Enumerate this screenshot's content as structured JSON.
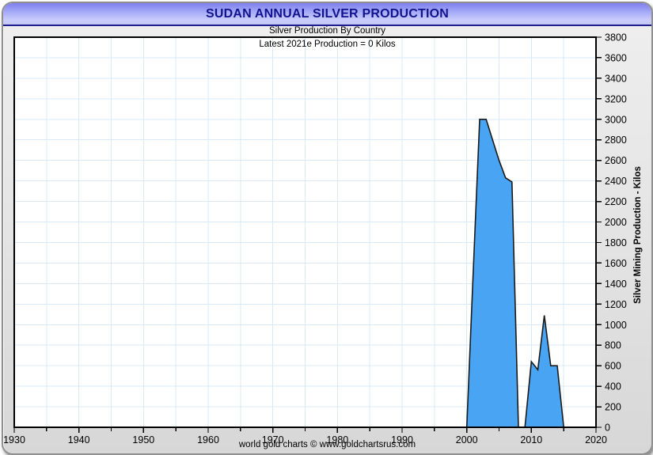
{
  "window": {
    "title": "SUDAN ANNUAL SILVER PRODUCTION",
    "subtitle": "Silver Production By Country",
    "annotation": "Latest 2021e Production = 0 Kilos",
    "footer": "world gold charts © www.goldchartsrus.com"
  },
  "colors": {
    "titlebar_top": "#7f7fee",
    "titlebar_bottom": "#c9cdfc",
    "title_text": "#12128e",
    "navy_rule": "#1e1e8f",
    "window_bg": "#e3e3e3",
    "plot_bg": "#ffffff",
    "plot_border": "#000000",
    "grid": "#d9e9f8",
    "area_fill": "#49a5f3",
    "area_stroke": "#1a1a1a",
    "tick_text": "#000000"
  },
  "chart_data": {
    "type": "area",
    "title": "Silver Production By Country",
    "annotation": "Latest 2021e Production = 0 Kilos",
    "xlabel": "",
    "ylabel": "Silver Mining Production - Kilos",
    "x_range": [
      1930,
      2020
    ],
    "y_range": [
      0,
      3800
    ],
    "y_step": 200,
    "x_grid_step_years": 5,
    "grid": "on",
    "legend": "none",
    "xticks": [
      1930,
      1940,
      1950,
      1960,
      1970,
      1980,
      1990,
      2000,
      2010,
      2020
    ],
    "yticks": [
      0,
      200,
      400,
      600,
      800,
      1000,
      1200,
      1400,
      1600,
      1800,
      2000,
      2200,
      2400,
      2600,
      2800,
      3000,
      3200,
      3400,
      3600,
      3800
    ],
    "zero_years_note": "Production is 0 kilos for 1930-1999 and for 2016-2021e (latest 2021e = 0)",
    "series": [
      {
        "name": "Sudan annual silver production (kilos)",
        "points": [
          [
            2000,
            0
          ],
          [
            2001,
            1500
          ],
          [
            2002,
            3000
          ],
          [
            2003,
            3000
          ],
          [
            2004,
            2800
          ],
          [
            2005,
            2600
          ],
          [
            2006,
            2430
          ],
          [
            2007,
            2390
          ],
          [
            2008,
            0
          ],
          [
            2009,
            0
          ],
          [
            2010,
            640
          ],
          [
            2011,
            560
          ],
          [
            2012,
            1090
          ],
          [
            2013,
            600
          ],
          [
            2014,
            600
          ],
          [
            2015,
            0
          ],
          [
            2016,
            0
          ],
          [
            2017,
            0
          ],
          [
            2018,
            0
          ],
          [
            2019,
            0
          ],
          [
            2020,
            0
          ]
        ]
      }
    ]
  }
}
